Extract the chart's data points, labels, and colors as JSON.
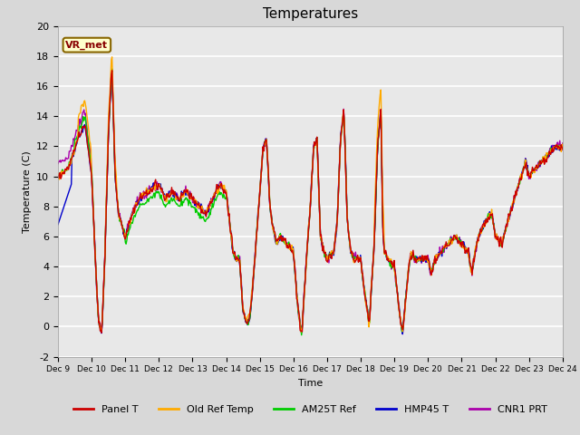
{
  "title": "Temperatures",
  "ylabel": "Temperature (C)",
  "xlabel": "Time",
  "annotation": "VR_met",
  "ylim": [
    -2,
    20
  ],
  "fig_bg_color": "#d8d8d8",
  "plot_bg_color": "#e8e8e8",
  "series_colors": {
    "Panel T": "#cc0000",
    "Old Ref Temp": "#ffaa00",
    "AM25T Ref": "#00cc00",
    "HMP45 T": "#0000cc",
    "CNR1 PRT": "#aa00aa"
  },
  "yticks": [
    -2,
    0,
    2,
    4,
    6,
    8,
    10,
    12,
    14,
    16,
    18,
    20
  ],
  "legend_entries": [
    "Panel T",
    "Old Ref Temp",
    "AM25T Ref",
    "HMP45 T",
    "CNR1 PRT"
  ],
  "line_width": 1.0,
  "n_days": 15,
  "start_day": 9,
  "x_tick_days": [
    9,
    10,
    11,
    12,
    13,
    14,
    15,
    16,
    17,
    18,
    19,
    20,
    21,
    22,
    23,
    24
  ]
}
